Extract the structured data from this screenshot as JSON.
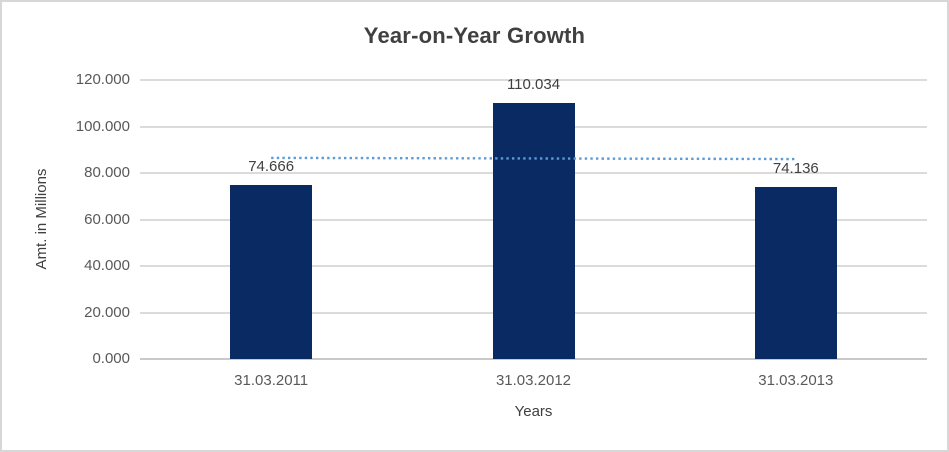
{
  "chart": {
    "title": "Year-on-Year Growth",
    "x_axis_title": "Years",
    "y_axis_title": "Amt. in Millions"
  },
  "chart_data": {
    "type": "bar",
    "title": "Year-on-Year Growth",
    "xlabel": "Years",
    "ylabel": "Amt. in Millions",
    "categories": [
      "31.03.2011",
      "31.03.2012",
      "31.03.2013"
    ],
    "values": [
      74.666,
      110.034,
      74.136
    ],
    "data_labels": [
      "74.666",
      "110.034",
      "74.136"
    ],
    "ylim": [
      0,
      120
    ],
    "yticks": [
      0,
      20,
      40,
      60,
      80,
      100,
      120
    ],
    "ytick_labels": [
      "0.000",
      "20.000",
      "40.000",
      "60.000",
      "80.000",
      "100.000",
      "120.000"
    ],
    "grid": true,
    "legend": "none",
    "trendline": {
      "type": "linear",
      "style": "dotted",
      "start_value": 86.5,
      "end_value": 86.0
    },
    "colors": {
      "bar": "#0A2A63",
      "trendline": "#5B9BD5",
      "gridline": "#DBDBDB",
      "axis_line": "#C9C9C9",
      "title_text": "#404040",
      "tick_text": "#595959",
      "label_text": "#404040",
      "border": "#D7D7D7"
    }
  }
}
